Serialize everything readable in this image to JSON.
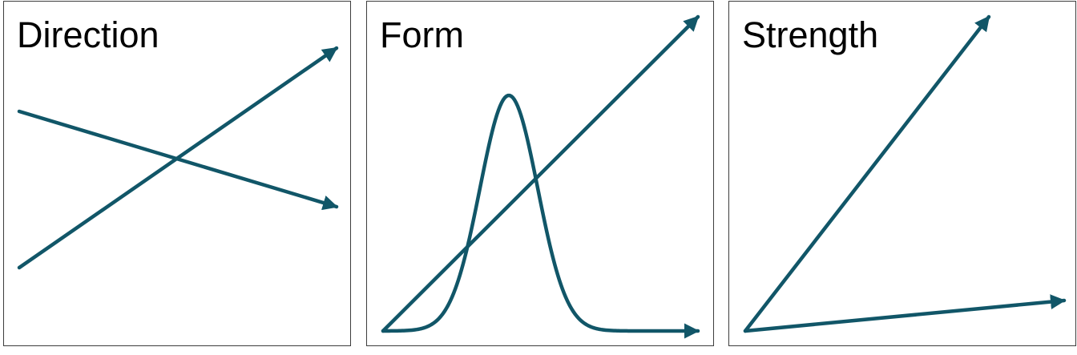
{
  "colors": {
    "line": "#115668",
    "border": "#3d3d3d"
  },
  "panels": {
    "direction": {
      "title": "Direction"
    },
    "form": {
      "title": "Form"
    },
    "strength": {
      "title": "Strength"
    }
  }
}
